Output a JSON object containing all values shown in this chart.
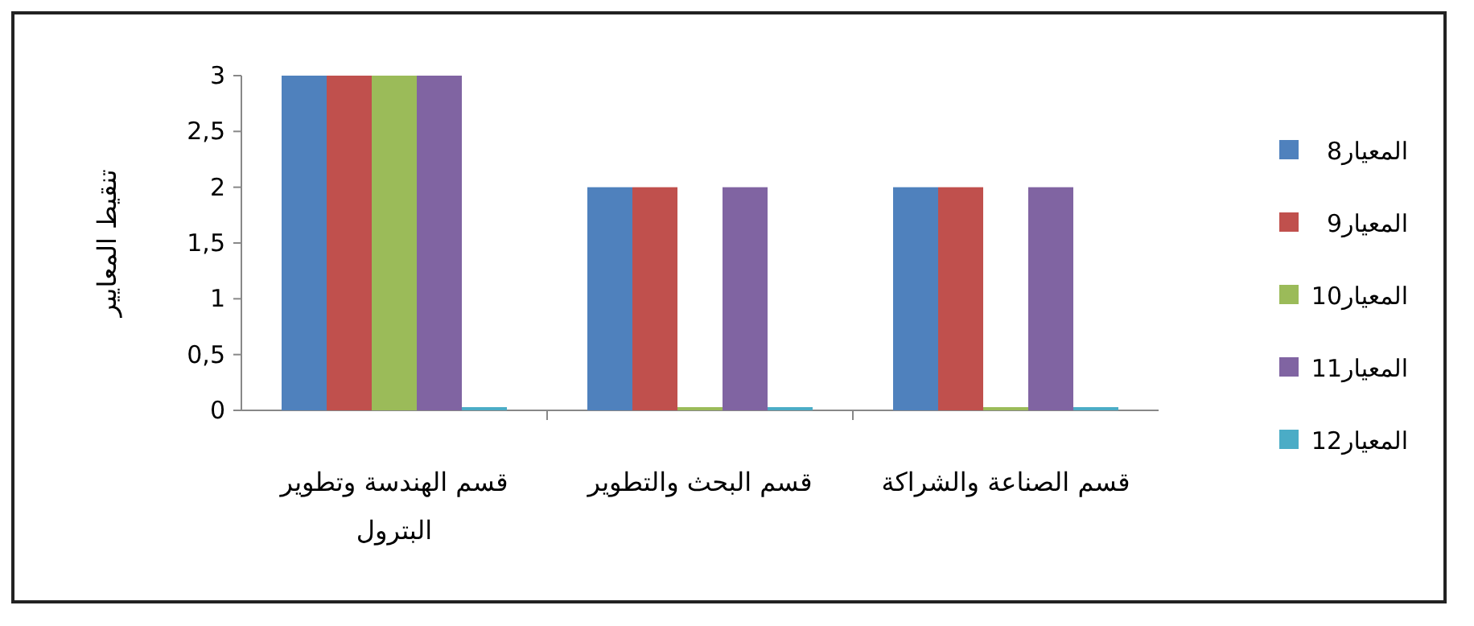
{
  "chart_data": {
    "type": "bar",
    "categories": [
      "قسم الهندسة وتطوير البترول",
      "قسم البحث والتطوير",
      "قسم الصناعة والشراكة"
    ],
    "ylabel": "تنقيط المعايير",
    "series": [
      {
        "name": "المعيار8",
        "color": "#4f81bd",
        "values": [
          3,
          2,
          2
        ]
      },
      {
        "name": "المعيار9",
        "color": "#c0504d",
        "values": [
          3,
          2,
          2
        ]
      },
      {
        "name": "المعيار10",
        "color": "#9bbb59",
        "values": [
          3,
          0,
          0
        ]
      },
      {
        "name": "المعيار11",
        "color": "#8064a2",
        "values": [
          3,
          2,
          2
        ]
      },
      {
        "name": "المعيار12",
        "color": "#4bacc6",
        "values": [
          0,
          0,
          0
        ]
      }
    ],
    "ylim": [
      0,
      3
    ],
    "yticks": [
      0,
      {
        "value": 0.5,
        "label": "0,5"
      },
      1,
      {
        "value": 1.5,
        "label": "1,5"
      },
      2,
      {
        "value": 2.5,
        "label": "2,5"
      },
      3
    ],
    "legend": "right"
  }
}
